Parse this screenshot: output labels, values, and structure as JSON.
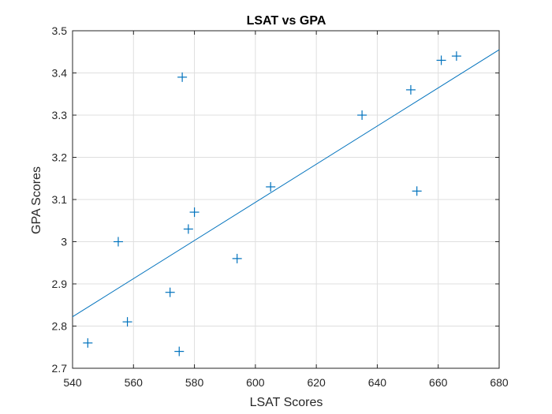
{
  "chart_data": {
    "type": "scatter",
    "title": "LSAT vs GPA",
    "xlabel": "LSAT Scores",
    "ylabel": "GPA Scores",
    "xlim": [
      540,
      680
    ],
    "ylim": [
      2.7,
      3.5
    ],
    "xticks": [
      540,
      560,
      580,
      600,
      620,
      640,
      660,
      680
    ],
    "yticks": [
      2.7,
      2.8,
      2.9,
      3.0,
      3.1,
      3.2,
      3.3,
      3.4,
      3.5
    ],
    "xtick_labels": [
      "540",
      "560",
      "580",
      "600",
      "620",
      "640",
      "660",
      "680"
    ],
    "ytick_labels": [
      "2.7",
      "2.8",
      "2.9",
      "3",
      "3.1",
      "3.2",
      "3.3",
      "3.4",
      "3.5"
    ],
    "grid": true,
    "marker": "+",
    "color": "#0072BD",
    "series": [
      {
        "points": [
          {
            "x": 545,
            "y": 2.76
          },
          {
            "x": 555,
            "y": 3.0
          },
          {
            "x": 558,
            "y": 2.81
          },
          {
            "x": 572,
            "y": 2.88
          },
          {
            "x": 575,
            "y": 2.74
          },
          {
            "x": 576,
            "y": 3.39
          },
          {
            "x": 578,
            "y": 3.03
          },
          {
            "x": 580,
            "y": 3.07
          },
          {
            "x": 594,
            "y": 2.96
          },
          {
            "x": 605,
            "y": 3.13
          },
          {
            "x": 635,
            "y": 3.3
          },
          {
            "x": 651,
            "y": 3.36
          },
          {
            "x": 653,
            "y": 3.12
          },
          {
            "x": 661,
            "y": 3.43
          },
          {
            "x": 666,
            "y": 3.44
          }
        ]
      }
    ],
    "fit_line": {
      "x": [
        540,
        680
      ],
      "y": [
        2.822,
        3.455
      ]
    }
  }
}
